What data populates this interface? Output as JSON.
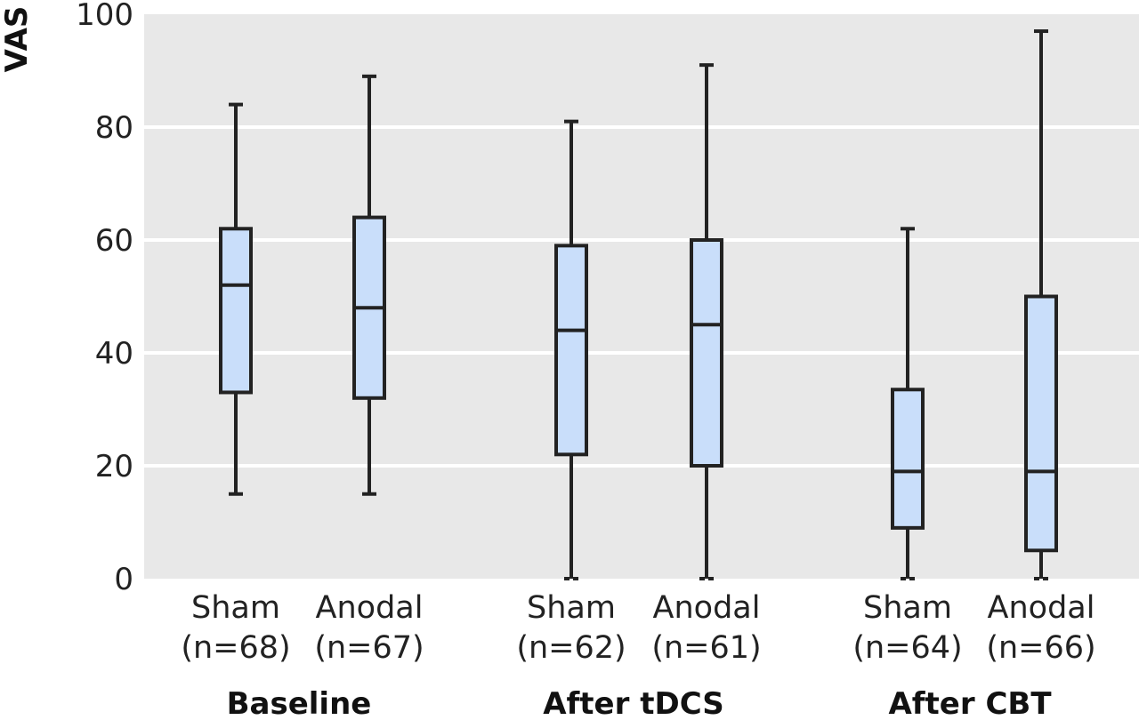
{
  "chart_data": {
    "type": "box",
    "ylabel": "VAS",
    "ylim": [
      0,
      100
    ],
    "yticks": [
      0,
      20,
      40,
      60,
      80,
      100
    ],
    "grid": true,
    "colors": {
      "background": "#e8e8e8",
      "box_fill": "#c9defa",
      "stroke": "#222222",
      "grid": "#ffffff"
    },
    "groups": [
      {
        "label": "Baseline",
        "boxes": [
          {
            "name": "Sham",
            "n": "(n=68)",
            "min": 15,
            "q1": 33,
            "median": 52,
            "q3": 62,
            "max": 84
          },
          {
            "name": "Anodal",
            "n": "(n=67)",
            "min": 15,
            "q1": 32,
            "median": 48,
            "q3": 64,
            "max": 89
          }
        ]
      },
      {
        "label": "After tDCS",
        "boxes": [
          {
            "name": "Sham",
            "n": "(n=62)",
            "min": 0,
            "q1": 22,
            "median": 44,
            "q3": 59,
            "max": 81
          },
          {
            "name": "Anodal",
            "n": "(n=61)",
            "min": 0,
            "q1": 20,
            "median": 45,
            "q3": 60,
            "max": 91
          }
        ]
      },
      {
        "label": "After CBT",
        "boxes": [
          {
            "name": "Sham",
            "n": "(n=64)",
            "min": 0,
            "q1": 9,
            "median": 19,
            "q3": 33.5,
            "max": 62
          },
          {
            "name": "Anodal",
            "n": "(n=66)",
            "min": 0,
            "q1": 5,
            "median": 19,
            "q3": 50,
            "max": 97
          }
        ]
      }
    ]
  }
}
